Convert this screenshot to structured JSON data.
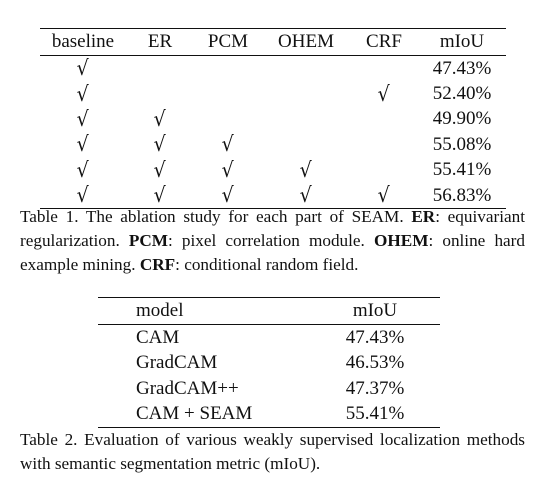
{
  "table1": {
    "headers": [
      "baseline",
      "ER",
      "PCM",
      "OHEM",
      "CRF",
      "mIoU"
    ],
    "check_symbol": "√",
    "rows": [
      {
        "checks": [
          true,
          false,
          false,
          false,
          false
        ],
        "miou": "47.43%"
      },
      {
        "checks": [
          true,
          false,
          false,
          false,
          true
        ],
        "miou": "52.40%"
      },
      {
        "checks": [
          true,
          true,
          false,
          false,
          false
        ],
        "miou": "49.90%"
      },
      {
        "checks": [
          true,
          true,
          true,
          false,
          false
        ],
        "miou": "55.08%"
      },
      {
        "checks": [
          true,
          true,
          true,
          true,
          false
        ],
        "miou": "55.41%"
      },
      {
        "checks": [
          true,
          true,
          true,
          true,
          true
        ],
        "miou": "56.83%"
      }
    ]
  },
  "caption1": {
    "prefix": "Table 1. The ablation study for each part of SEAM. ",
    "terms": [
      {
        "abbr": "ER",
        "desc": ": equivariant regularization. "
      },
      {
        "abbr": "PCM",
        "desc": ": pixel correlation module. "
      },
      {
        "abbr": "OHEM",
        "desc": ": online hard example mining. "
      },
      {
        "abbr": "CRF",
        "desc": ": conditional random field."
      }
    ]
  },
  "table2": {
    "headers": [
      "model",
      "mIoU"
    ],
    "rows": [
      {
        "model": "CAM",
        "miou": "47.43%"
      },
      {
        "model": "GradCAM",
        "miou": "46.53%"
      },
      {
        "model": "GradCAM++",
        "miou": "47.37%"
      },
      {
        "model": "CAM + SEAM",
        "miou": "55.41%"
      }
    ]
  },
  "caption2": {
    "text": "Table 2. Evaluation of various weakly supervised localization methods with semantic segmentation metric (mIoU)."
  }
}
